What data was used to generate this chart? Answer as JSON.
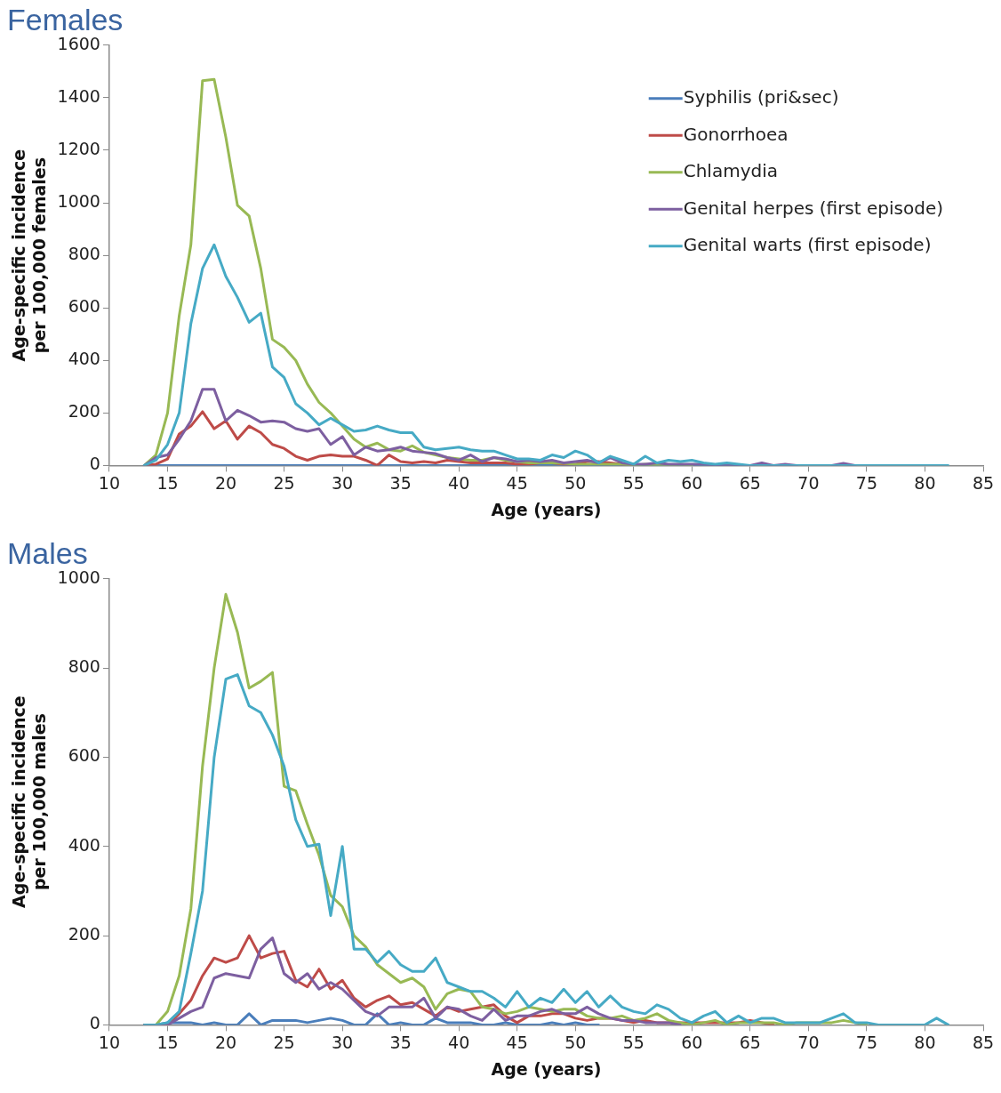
{
  "chart_data": [
    {
      "type": "line",
      "title": "Females",
      "xlabel": "Age (years)",
      "ylabel": "Age-specific incidence\nper 100,000 females",
      "xlim": [
        10,
        85
      ],
      "xticks": [
        10,
        15,
        20,
        25,
        30,
        35,
        40,
        45,
        50,
        55,
        60,
        65,
        70,
        75,
        80,
        85
      ],
      "ylim": [
        0,
        1600
      ],
      "yticks": [
        0,
        200,
        400,
        600,
        800,
        1000,
        1200,
        1400,
        1600
      ],
      "grid": false,
      "legend": "top right",
      "x": [
        13,
        14,
        15,
        16,
        17,
        18,
        19,
        20,
        21,
        22,
        23,
        24,
        25,
        26,
        27,
        28,
        29,
        30,
        31,
        32,
        33,
        34,
        35,
        36,
        37,
        38,
        39,
        40,
        41,
        42,
        43,
        44,
        45,
        46,
        47,
        48,
        49,
        50,
        51,
        52,
        53,
        54,
        55,
        56,
        57,
        58,
        59,
        60,
        61,
        62,
        63,
        64,
        65,
        66,
        67,
        68,
        69,
        70,
        71,
        72,
        73,
        74,
        75,
        76,
        77,
        78,
        79,
        80,
        81,
        82
      ],
      "series": [
        {
          "name": "Syphilis (pri&sec)",
          "color": "#4a7ebb",
          "values": [
            0,
            0,
            0,
            0,
            0,
            0,
            0,
            0,
            0,
            0,
            0,
            0,
            0,
            0,
            0,
            0,
            0,
            0,
            0,
            0,
            0,
            0,
            0,
            0,
            0,
            0,
            0,
            0,
            0,
            0,
            0,
            0,
            0,
            0,
            0,
            0,
            0,
            0,
            0,
            0,
            0,
            0,
            0,
            0,
            0,
            0,
            0,
            0,
            0,
            0,
            0,
            0,
            null,
            null,
            null,
            null,
            null,
            null,
            null,
            null,
            null,
            null,
            null,
            null,
            null,
            null,
            null,
            null,
            null,
            null
          ]
        },
        {
          "name": "Gonorrhoea",
          "color": "#be4b48",
          "values": [
            0,
            5,
            25,
            120,
            150,
            205,
            140,
            170,
            100,
            150,
            125,
            80,
            65,
            35,
            20,
            35,
            40,
            35,
            35,
            20,
            0,
            40,
            15,
            10,
            15,
            10,
            20,
            15,
            10,
            10,
            10,
            10,
            5,
            5,
            10,
            10,
            5,
            5,
            15,
            15,
            10,
            5,
            5,
            null,
            null,
            null,
            null,
            null,
            null,
            null,
            null,
            null,
            null,
            null,
            null,
            null,
            null,
            null,
            null,
            null,
            null,
            null,
            null,
            null,
            null,
            null,
            null,
            null,
            null,
            null
          ]
        },
        {
          "name": "Chlamydia",
          "color": "#98b954",
          "values": [
            0,
            40,
            200,
            570,
            840,
            1465,
            1470,
            1250,
            990,
            950,
            750,
            480,
            450,
            400,
            310,
            240,
            200,
            150,
            100,
            70,
            85,
            60,
            55,
            75,
            50,
            40,
            30,
            25,
            20,
            20,
            30,
            20,
            15,
            10,
            10,
            10,
            8,
            5,
            5,
            5,
            5,
            5,
            0,
            5,
            0,
            0,
            5,
            0,
            null,
            null,
            null,
            null,
            null,
            null,
            null,
            null,
            null,
            null,
            null,
            null,
            null,
            null,
            null,
            null,
            null,
            null,
            null,
            null,
            null,
            null
          ]
        },
        {
          "name": "Genital herpes (first episode)",
          "color": "#7d5fa0",
          "values": [
            0,
            30,
            40,
            100,
            170,
            290,
            290,
            170,
            210,
            190,
            165,
            170,
            165,
            140,
            130,
            140,
            80,
            110,
            40,
            70,
            55,
            60,
            70,
            55,
            50,
            45,
            30,
            20,
            40,
            15,
            30,
            25,
            15,
            20,
            15,
            20,
            10,
            15,
            20,
            10,
            30,
            10,
            5,
            5,
            10,
            5,
            5,
            5,
            5,
            0,
            0,
            0,
            0,
            10,
            0,
            5,
            0,
            null,
            null,
            0,
            8,
            0,
            null,
            null,
            null,
            null,
            null,
            null,
            null,
            null
          ]
        },
        {
          "name": "Genital warts (first episode)",
          "color": "#46aac5",
          "values": [
            0,
            20,
            80,
            200,
            540,
            750,
            840,
            720,
            640,
            545,
            580,
            375,
            335,
            235,
            200,
            155,
            180,
            155,
            130,
            135,
            150,
            135,
            125,
            125,
            70,
            60,
            65,
            70,
            60,
            55,
            55,
            40,
            25,
            25,
            20,
            40,
            30,
            55,
            40,
            10,
            35,
            20,
            5,
            35,
            10,
            20,
            15,
            20,
            10,
            5,
            10,
            5,
            0,
            0,
            0,
            0,
            0,
            0,
            0,
            0,
            0,
            0,
            0,
            0,
            0,
            0,
            0,
            0,
            0,
            0
          ]
        }
      ]
    },
    {
      "type": "line",
      "title": "Males",
      "xlabel": "Age (years)",
      "ylabel": "Age-specific incidence\nper 100,000 males",
      "xlim": [
        10,
        85
      ],
      "xticks": [
        10,
        15,
        20,
        25,
        30,
        35,
        40,
        45,
        50,
        55,
        60,
        65,
        70,
        75,
        80,
        85
      ],
      "ylim": [
        0,
        1000
      ],
      "yticks": [
        0,
        200,
        400,
        600,
        800,
        1000
      ],
      "grid": false,
      "x": [
        13,
        14,
        15,
        16,
        17,
        18,
        19,
        20,
        21,
        22,
        23,
        24,
        25,
        26,
        27,
        28,
        29,
        30,
        31,
        32,
        33,
        34,
        35,
        36,
        37,
        38,
        39,
        40,
        41,
        42,
        43,
        44,
        45,
        46,
        47,
        48,
        49,
        50,
        51,
        52,
        53,
        54,
        55,
        56,
        57,
        58,
        59,
        60,
        61,
        62,
        63,
        64,
        65,
        66,
        67,
        68,
        69,
        70,
        71,
        72,
        73,
        74,
        75,
        76,
        77,
        78,
        79,
        80,
        81,
        82
      ],
      "series": [
        {
          "color": "#4a7ebb",
          "values": [
            0,
            0,
            5,
            5,
            5,
            0,
            5,
            0,
            0,
            25,
            0,
            10,
            10,
            10,
            5,
            10,
            15,
            10,
            0,
            0,
            25,
            0,
            5,
            0,
            0,
            15,
            5,
            5,
            5,
            0,
            0,
            5,
            0,
            0,
            0,
            5,
            0,
            5,
            0,
            0,
            null,
            null,
            null,
            null,
            null,
            null,
            null,
            null,
            null,
            null,
            null,
            null,
            null,
            null,
            null,
            null,
            null,
            null,
            null,
            null,
            null,
            null,
            null,
            null,
            null,
            null,
            null,
            null,
            null,
            null
          ]
        },
        {
          "color": "#be4b48",
          "values": [
            0,
            0,
            0,
            25,
            55,
            110,
            150,
            140,
            150,
            200,
            150,
            160,
            165,
            100,
            85,
            125,
            80,
            100,
            60,
            40,
            55,
            65,
            45,
            50,
            35,
            20,
            40,
            30,
            35,
            40,
            45,
            20,
            5,
            20,
            20,
            25,
            25,
            15,
            10,
            15,
            15,
            10,
            5,
            10,
            5,
            5,
            5,
            5,
            5,
            5,
            5,
            5,
            10,
            5,
            0,
            null,
            null,
            null,
            null,
            null,
            null,
            null,
            null,
            null,
            null,
            null,
            null,
            null,
            null,
            null
          ]
        },
        {
          "color": "#98b954",
          "values": [
            0,
            0,
            30,
            110,
            260,
            580,
            800,
            965,
            880,
            755,
            770,
            790,
            535,
            525,
            450,
            380,
            290,
            265,
            200,
            175,
            135,
            115,
            95,
            105,
            85,
            35,
            70,
            80,
            75,
            40,
            35,
            25,
            30,
            40,
            35,
            30,
            35,
            35,
            20,
            15,
            15,
            20,
            10,
            15,
            25,
            10,
            5,
            0,
            5,
            10,
            0,
            5,
            5,
            5,
            5,
            0,
            5,
            5,
            5,
            5,
            10,
            5,
            0,
            null,
            null,
            null,
            null,
            null,
            null,
            null
          ]
        },
        {
          "color": "#7d5fa0",
          "values": [
            0,
            0,
            0,
            15,
            30,
            40,
            105,
            115,
            110,
            105,
            170,
            195,
            115,
            95,
            115,
            80,
            95,
            80,
            55,
            30,
            20,
            40,
            40,
            40,
            60,
            15,
            40,
            35,
            20,
            10,
            35,
            10,
            20,
            20,
            30,
            35,
            25,
            25,
            40,
            25,
            15,
            10,
            10,
            5,
            5,
            5,
            0,
            null,
            null,
            null,
            null,
            null,
            null,
            null,
            null,
            null,
            null,
            null,
            null,
            null,
            null,
            null,
            null,
            null,
            null,
            null,
            null,
            null,
            null,
            null
          ]
        },
        {
          "color": "#46aac5",
          "values": [
            0,
            0,
            5,
            30,
            160,
            300,
            600,
            775,
            785,
            715,
            700,
            650,
            580,
            460,
            400,
            405,
            245,
            400,
            170,
            170,
            140,
            165,
            135,
            120,
            120,
            150,
            95,
            85,
            75,
            75,
            60,
            40,
            75,
            40,
            60,
            50,
            80,
            50,
            75,
            40,
            65,
            40,
            30,
            25,
            45,
            35,
            15,
            5,
            20,
            30,
            5,
            20,
            5,
            15,
            15,
            5,
            5,
            5,
            5,
            15,
            25,
            5,
            5,
            0,
            0,
            0,
            0,
            0,
            15,
            0
          ]
        }
      ]
    }
  ]
}
